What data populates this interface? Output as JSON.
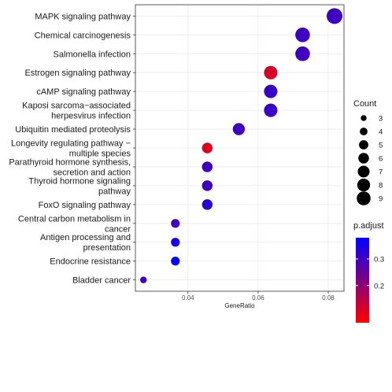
{
  "chart_data": {
    "type": "scatter",
    "xlabel": "GeneRatio",
    "x_ticks": [
      0.04,
      0.06,
      0.08
    ],
    "x_tick_labels": [
      "0.04",
      "0.06",
      "0.08"
    ],
    "xlim": [
      0.025,
      0.0845
    ],
    "grid": true,
    "categories": [
      "MAPK signaling pathway",
      "Chemical carcinogenesis",
      "Salmonella infection",
      "Estrogen signaling pathway",
      "cAMP signaling pathway",
      "Kaposi sarcoma−associated\nherpesvirus infection",
      "Ubiquitin mediated proteolysis",
      "Longevity regulating pathway −\nmultiple species",
      "Parathyroid hormone synthesis,\nsecretion and action",
      "Thyroid hormone signaling\npathway",
      "FoxO signaling pathway",
      "Central carbon metabolism in\ncancer",
      "Antigen processing and\npresentation",
      "Endocrine resistance",
      "Bladder cancer"
    ],
    "points": [
      {
        "term": "MAPK signaling pathway",
        "gene_ratio": 0.0818,
        "count": 9,
        "p_adjust": 0.3
      },
      {
        "term": "Chemical carcinogenesis",
        "gene_ratio": 0.0727,
        "count": 8,
        "p_adjust": 0.3
      },
      {
        "term": "Salmonella infection",
        "gene_ratio": 0.0727,
        "count": 8,
        "p_adjust": 0.3
      },
      {
        "term": "Estrogen signaling pathway",
        "gene_ratio": 0.0636,
        "count": 7,
        "p_adjust": 0.11
      },
      {
        "term": "cAMP signaling pathway",
        "gene_ratio": 0.0636,
        "count": 7,
        "p_adjust": 0.31
      },
      {
        "term": "Kaposi sarcoma−associated herpesvirus infection",
        "gene_ratio": 0.0636,
        "count": 7,
        "p_adjust": 0.31
      },
      {
        "term": "Ubiquitin mediated proteolysis",
        "gene_ratio": 0.0545,
        "count": 6,
        "p_adjust": 0.3
      },
      {
        "term": "Longevity regulating pathway − multiple species",
        "gene_ratio": 0.0455,
        "count": 5,
        "p_adjust": 0.1
      },
      {
        "term": "Parathyroid hormone synthesis, secretion and action",
        "gene_ratio": 0.0455,
        "count": 5,
        "p_adjust": 0.3
      },
      {
        "term": "Thyroid hormone signaling pathway",
        "gene_ratio": 0.0455,
        "count": 5,
        "p_adjust": 0.3
      },
      {
        "term": "FoxO signaling pathway",
        "gene_ratio": 0.0455,
        "count": 5,
        "p_adjust": 0.33
      },
      {
        "term": "Central carbon metabolism in cancer",
        "gene_ratio": 0.0364,
        "count": 4,
        "p_adjust": 0.3
      },
      {
        "term": "Antigen processing and presentation",
        "gene_ratio": 0.0364,
        "count": 4,
        "p_adjust": 0.35
      },
      {
        "term": "Endocrine resistance",
        "gene_ratio": 0.0364,
        "count": 4,
        "p_adjust": 0.38
      },
      {
        "term": "Bladder cancer",
        "gene_ratio": 0.0273,
        "count": 3,
        "p_adjust": 0.3
      }
    ],
    "size_legend": {
      "title": "Count",
      "values": [
        3,
        4,
        5,
        6,
        7,
        8,
        9
      ],
      "labels": [
        "3",
        "4",
        "5",
        "6",
        "7",
        "8",
        "9"
      ]
    },
    "color_legend": {
      "title": "p.adjust",
      "min": 0.06,
      "max": 0.38,
      "ticks": [
        0.2,
        0.3
      ],
      "tick_labels": [
        "0.2",
        "0.3"
      ],
      "low_color": "#ff0000",
      "high_color": "#0000ff"
    },
    "panel_background": "#ffffff",
    "grid_color": "#ebebeb",
    "border_color": "#333333"
  }
}
